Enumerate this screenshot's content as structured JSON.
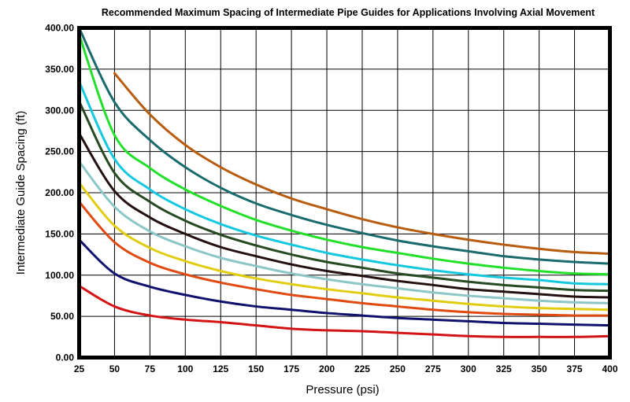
{
  "chart_data": {
    "type": "line",
    "title": "Recommended Maximum Spacing of Intermediate Pipe Guides for Applications Involving Axial Movement",
    "xlabel": "Pressure (psi)",
    "ylabel": "Intermediate Guide Spacing (ft)",
    "xlim": [
      25,
      400
    ],
    "ylim": [
      0,
      400
    ],
    "xticks": [
      25,
      50,
      75,
      100,
      125,
      150,
      175,
      200,
      225,
      250,
      275,
      300,
      325,
      350,
      375,
      400
    ],
    "xtick_labels": [
      "25",
      "50",
      "75",
      "100",
      "125",
      "150",
      "175",
      "200",
      "225",
      "250",
      "275",
      "300",
      "325",
      "350",
      "375",
      "400"
    ],
    "yticks": [
      0,
      50,
      100,
      150,
      200,
      250,
      300,
      350,
      400
    ],
    "ytick_labels": [
      "0.00",
      "50.00",
      "100.00",
      "150.00",
      "200.00",
      "250.00",
      "300.00",
      "350.00",
      "400.00"
    ],
    "grid": true,
    "x": [
      25,
      50,
      75,
      100,
      125,
      150,
      175,
      200,
      225,
      250,
      275,
      300,
      325,
      350,
      375,
      400
    ],
    "series": [
      {
        "color": "#b85c10",
        "values": [
          null,
          345,
          295,
          258,
          231,
          210,
          193,
          180,
          168,
          158,
          150,
          143,
          137,
          132,
          128,
          126
        ]
      },
      {
        "color": "#1a6b6e",
        "values": [
          400,
          310,
          264,
          231,
          206,
          187,
          173,
          161,
          151,
          142,
          135,
          129,
          123,
          119,
          116,
          114
        ]
      },
      {
        "color": "#22e02a",
        "values": [
          392,
          270,
          230,
          204,
          184,
          167,
          154,
          143,
          134,
          127,
          120,
          114,
          109,
          105,
          102,
          101
        ]
      },
      {
        "color": "#14c8e0",
        "values": [
          335,
          241,
          204,
          180,
          162,
          148,
          137,
          127,
          119,
          112,
          106,
          101,
          97,
          94,
          90,
          89
        ]
      },
      {
        "color": "#264a22",
        "values": [
          311,
          224,
          189,
          166,
          149,
          136,
          125,
          116,
          109,
          102,
          97,
          92,
          88,
          85,
          82,
          81
        ]
      },
      {
        "color": "#241010",
        "values": [
          272,
          202,
          170,
          150,
          134,
          123,
          113,
          105,
          99,
          93,
          88,
          83,
          80,
          77,
          74,
          73
        ]
      },
      {
        "color": "#8cc6c6",
        "values": [
          238,
          183,
          153,
          135,
          121,
          111,
          102,
          95,
          89,
          84,
          79,
          75,
          72,
          69,
          67,
          66
        ]
      },
      {
        "color": "#e2cc10",
        "values": [
          212,
          160,
          133,
          117,
          105,
          96,
          89,
          83,
          78,
          73,
          69,
          65,
          62,
          60,
          59,
          58
        ]
      },
      {
        "color": "#e04a10",
        "values": [
          189,
          140,
          115,
          101,
          91,
          83,
          76,
          71,
          66,
          62,
          58,
          55,
          53,
          52,
          51,
          51
        ]
      },
      {
        "color": "#10106e",
        "values": [
          143,
          102,
          86,
          76,
          68,
          62,
          58,
          54,
          51,
          48,
          46,
          44,
          42,
          41,
          40,
          39
        ]
      },
      {
        "color": "#d41414",
        "values": [
          87,
          62,
          51,
          46,
          43,
          39,
          35,
          33,
          32,
          30,
          28,
          26,
          25,
          25,
          25,
          26
        ]
      }
    ]
  }
}
